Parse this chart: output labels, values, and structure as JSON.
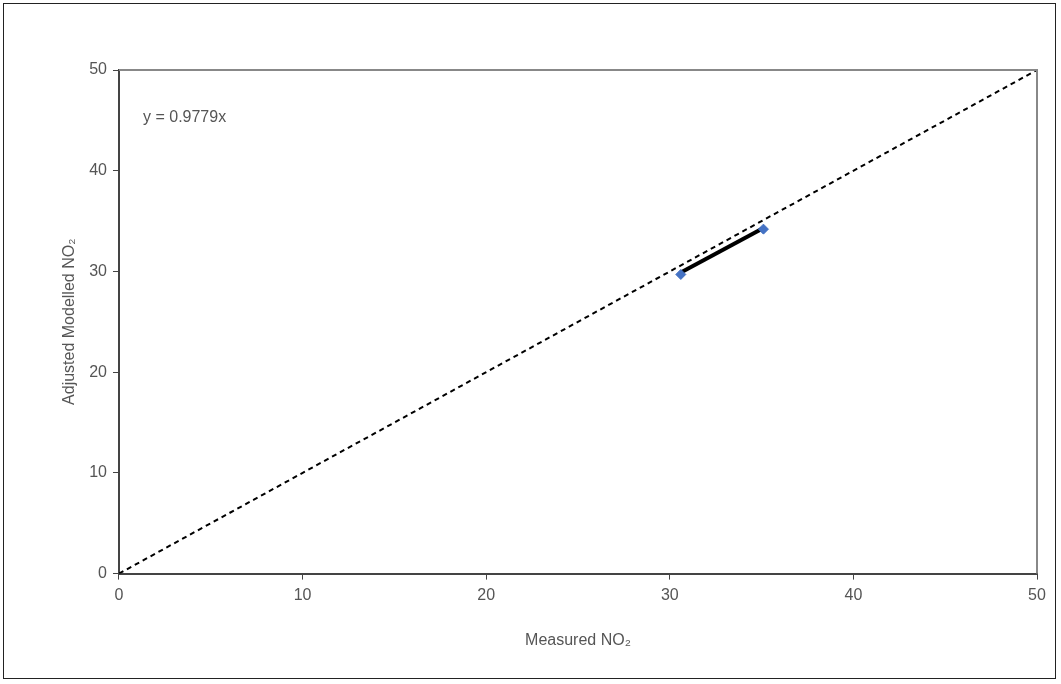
{
  "chart_data": {
    "type": "scatter",
    "xlabel": "Measured NO₂",
    "ylabel": "Adjusted Modelled NO₂",
    "xlim": [
      0,
      50
    ],
    "xticks": [
      0,
      10,
      20,
      30,
      40,
      50
    ],
    "ylim": [
      0,
      50
    ],
    "yticks": [
      0,
      10,
      20,
      30,
      40,
      50
    ],
    "grid": false,
    "legend": false,
    "marker": "diamond",
    "series": [
      {
        "color": "#4472c4",
        "x": [
          30.6,
          35.1
        ],
        "values": [
          29.7,
          34.2
        ]
      },
      {
        "type": "line",
        "color": "#000000",
        "x": [
          30.6,
          35.1
        ],
        "values": [
          29.9,
          34.3
        ],
        "marker": "none",
        "line_style": "solid"
      },
      {
        "type": "line",
        "color": "#000000",
        "x": [
          0,
          50
        ],
        "values": [
          0,
          50
        ],
        "marker": "none",
        "line_style": "dashed"
      }
    ],
    "annotations": [
      "y = 0.9779x"
    ]
  }
}
